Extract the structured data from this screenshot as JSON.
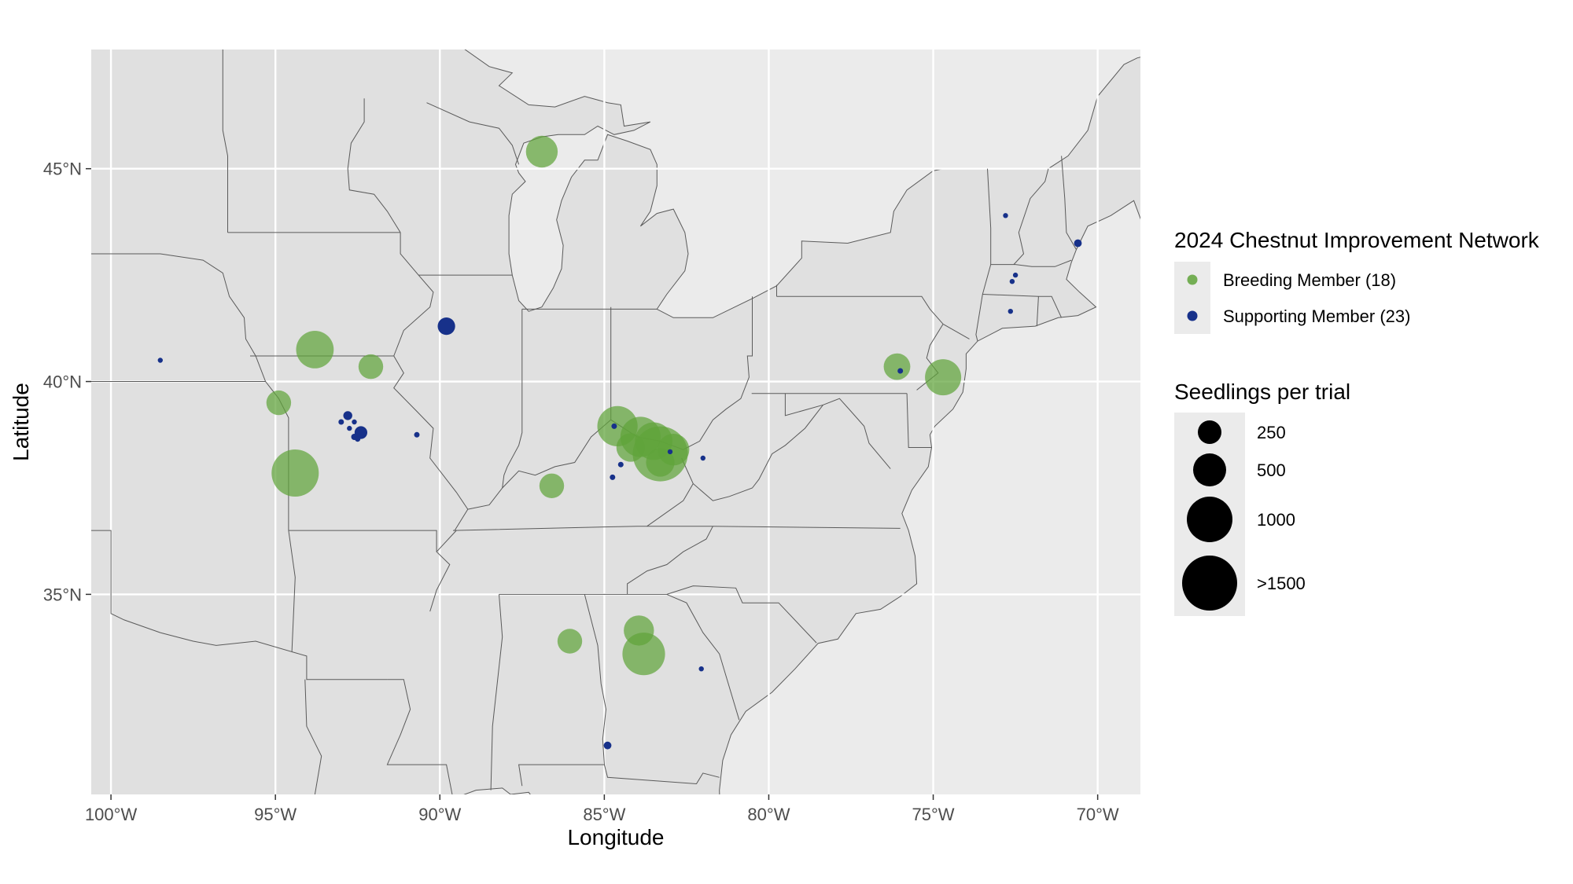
{
  "chart_data": {
    "type": "scatter",
    "subtype": "bubble-map",
    "title": "",
    "xlabel": "Longitude",
    "ylabel": "Latitude",
    "xlim": [
      -100.6,
      -68.7
    ],
    "ylim": [
      30.3,
      47.8
    ],
    "x_ticks": [
      -100,
      -95,
      -90,
      -85,
      -80,
      -75,
      -70
    ],
    "x_tick_labels": [
      "100°W",
      "95°W",
      "90°W",
      "85°W",
      "80°W",
      "75°W",
      "70°W"
    ],
    "y_ticks": [
      35,
      40,
      45
    ],
    "y_tick_labels": [
      "35°N",
      "40°N",
      "45°N"
    ],
    "grid": true,
    "legend_position": "right",
    "colors": {
      "panel": "#ebebeb",
      "land": "#e0e0e0",
      "border": "#5a5a5a",
      "grid": "#ffffff",
      "breeding": "#5fa33a",
      "supporting": "#17318a",
      "size_key": "#000000",
      "legend_key_bg": "#ebebeb"
    },
    "color_legend": {
      "title": "2024 Chestnut Improvement Network",
      "entries": [
        {
          "label": "Breeding Member (18)",
          "color": "#5fa33a"
        },
        {
          "label": "Supporting Member (23)",
          "color": "#17318a"
        }
      ]
    },
    "size_legend": {
      "title": "Seedlings per trial",
      "entries": [
        {
          "label": "250",
          "value": 250
        },
        {
          "label": "500",
          "value": 500
        },
        {
          "label": "1000",
          "value": 1000
        },
        {
          "label": ">1500",
          "value": 1500
        }
      ]
    },
    "series": [
      {
        "name": "Breeding Member (18)",
        "color": "#5fa33a",
        "points": [
          {
            "lon": -86.9,
            "lat": 45.4,
            "seedlings": 500
          },
          {
            "lon": -93.8,
            "lat": 40.75,
            "seedlings": 700
          },
          {
            "lon": -92.1,
            "lat": 40.35,
            "seedlings": 300
          },
          {
            "lon": -94.9,
            "lat": 39.5,
            "seedlings": 300
          },
          {
            "lon": -94.4,
            "lat": 37.85,
            "seedlings": 1100
          },
          {
            "lon": -84.6,
            "lat": 38.95,
            "seedlings": 800
          },
          {
            "lon": -83.9,
            "lat": 38.7,
            "seedlings": 800
          },
          {
            "lon": -83.5,
            "lat": 38.6,
            "seedlings": 700
          },
          {
            "lon": -83.3,
            "lat": 38.3,
            "seedlings": 1500
          },
          {
            "lon": -82.9,
            "lat": 38.4,
            "seedlings": 500
          },
          {
            "lon": -83.3,
            "lat": 38.1,
            "seedlings": 400
          },
          {
            "lon": -86.6,
            "lat": 37.55,
            "seedlings": 300
          },
          {
            "lon": -76.1,
            "lat": 40.35,
            "seedlings": 350
          },
          {
            "lon": -74.7,
            "lat": 40.1,
            "seedlings": 650
          },
          {
            "lon": -83.95,
            "lat": 34.15,
            "seedlings": 450
          },
          {
            "lon": -83.8,
            "lat": 33.6,
            "seedlings": 900
          },
          {
            "lon": -86.05,
            "lat": 33.9,
            "seedlings": 300
          },
          {
            "lon": -84.2,
            "lat": 38.45,
            "seedlings": 400
          }
        ]
      },
      {
        "name": "Supporting Member (23)",
        "color": "#17318a",
        "points": [
          {
            "lon": -98.5,
            "lat": 40.5,
            "seedlings": 10
          },
          {
            "lon": -89.8,
            "lat": 41.3,
            "seedlings": 150
          },
          {
            "lon": -92.8,
            "lat": 39.2,
            "seedlings": 40
          },
          {
            "lon": -93.0,
            "lat": 39.05,
            "seedlings": 15
          },
          {
            "lon": -92.6,
            "lat": 39.05,
            "seedlings": 5
          },
          {
            "lon": -92.4,
            "lat": 38.8,
            "seedlings": 80
          },
          {
            "lon": -92.6,
            "lat": 38.7,
            "seedlings": 20
          },
          {
            "lon": -92.5,
            "lat": 38.65,
            "seedlings": 15
          },
          {
            "lon": -92.75,
            "lat": 38.9,
            "seedlings": 5
          },
          {
            "lon": -90.7,
            "lat": 38.75,
            "seedlings": 15
          },
          {
            "lon": -84.7,
            "lat": 38.95,
            "seedlings": 15
          },
          {
            "lon": -84.5,
            "lat": 38.05,
            "seedlings": 15
          },
          {
            "lon": -84.75,
            "lat": 37.75,
            "seedlings": 15
          },
          {
            "lon": -82.0,
            "lat": 38.2,
            "seedlings": 10
          },
          {
            "lon": -76.0,
            "lat": 40.25,
            "seedlings": 15
          },
          {
            "lon": -72.8,
            "lat": 43.9,
            "seedlings": 8
          },
          {
            "lon": -70.6,
            "lat": 43.25,
            "seedlings": 30
          },
          {
            "lon": -72.5,
            "lat": 42.5,
            "seedlings": 8
          },
          {
            "lon": -72.6,
            "lat": 42.35,
            "seedlings": 5
          },
          {
            "lon": -72.65,
            "lat": 41.65,
            "seedlings": 5
          },
          {
            "lon": -82.05,
            "lat": 33.25,
            "seedlings": 10
          },
          {
            "lon": -84.9,
            "lat": 31.45,
            "seedlings": 30
          },
          {
            "lon": -83.0,
            "lat": 38.35,
            "seedlings": 5
          }
        ]
      }
    ]
  }
}
